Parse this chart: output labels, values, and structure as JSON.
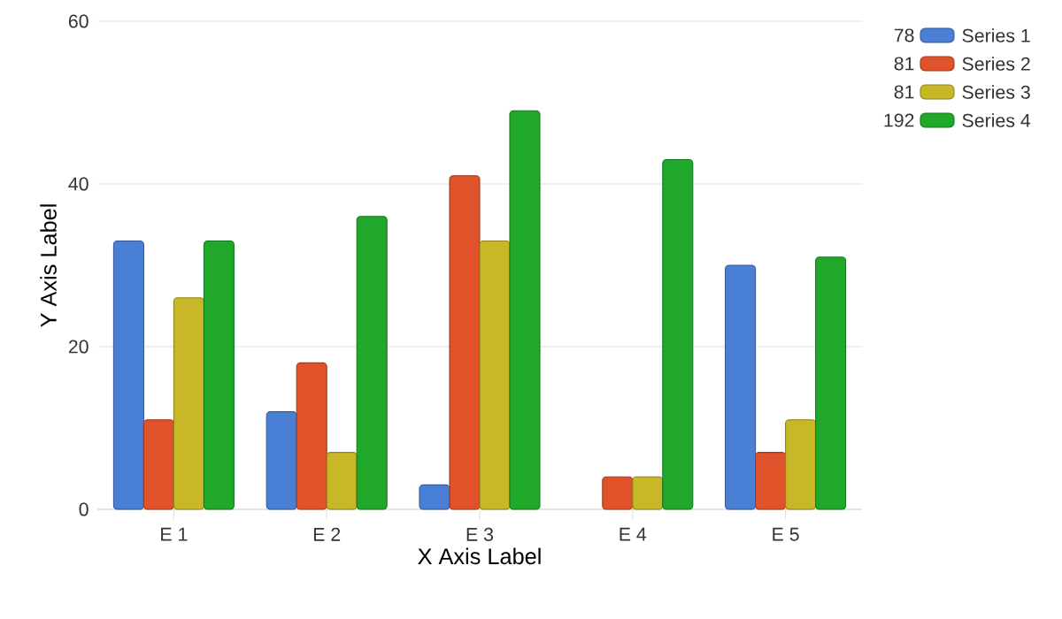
{
  "chart_data": {
    "type": "bar",
    "xlabel": "X Axis Label",
    "ylabel": "Y Axis Label",
    "categories": [
      "E 1",
      "E 2",
      "E 3",
      "E 4",
      "E 5"
    ],
    "series": [
      {
        "name": "Series 1",
        "color": "#4a7fd6",
        "values": [
          33,
          12,
          3,
          0,
          30
        ]
      },
      {
        "name": "Series 2",
        "color": "#e0522a",
        "values": [
          11,
          18,
          41,
          4,
          7
        ]
      },
      {
        "name": "Series 3",
        "color": "#c8b828",
        "values": [
          26,
          7,
          33,
          4,
          11
        ]
      },
      {
        "name": "Series 4",
        "color": "#1fa82a",
        "values": [
          33,
          36,
          49,
          43,
          31
        ]
      }
    ],
    "annotations": [
      "78",
      "81",
      "81",
      "192"
    ],
    "ylim": [
      0,
      60
    ],
    "yticks": [
      0,
      20,
      40,
      60
    ],
    "grid": "y",
    "legend": "top right"
  }
}
